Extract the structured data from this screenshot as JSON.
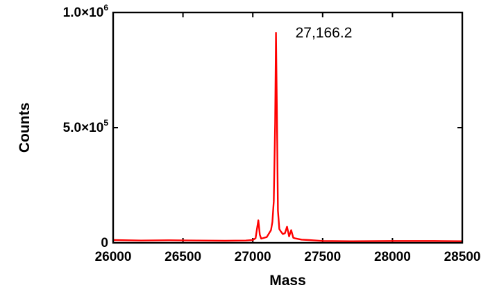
{
  "chart_data": {
    "type": "line",
    "title": "",
    "xlabel": "Mass",
    "ylabel": "Counts",
    "xlim": [
      26000,
      28500
    ],
    "ylim": [
      0,
      1000000
    ],
    "x_ticks": [
      26000,
      26500,
      27000,
      27500,
      28000,
      28500
    ],
    "x_tick_labels": [
      "26000",
      "26500",
      "27000",
      "27500",
      "28000",
      "28500"
    ],
    "y_ticks": [
      {
        "value": 0,
        "mantissa": "0",
        "exponent": ""
      },
      {
        "value": 500000,
        "mantissa": "5.0×10",
        "exponent": "5"
      },
      {
        "value": 1000000,
        "mantissa": "1.0×10",
        "exponent": "6"
      }
    ],
    "grid": false,
    "legend": "none",
    "series": [
      {
        "color": "#ff0000",
        "x": [
          26000,
          26200,
          26400,
          26600,
          26800,
          26950,
          27000,
          27020,
          27030,
          27040,
          27050,
          27060,
          27100,
          27130,
          27140,
          27150,
          27160,
          27166.2,
          27172,
          27180,
          27190,
          27200,
          27215,
          27230,
          27245,
          27260,
          27275,
          27290,
          27300,
          27350,
          27400,
          27500,
          27700,
          28000,
          28300,
          28500
        ],
        "y": [
          12000,
          10000,
          11000,
          10000,
          9000,
          10000,
          12000,
          20000,
          60000,
          98000,
          35000,
          18000,
          25000,
          55000,
          90000,
          180000,
          520000,
          912000,
          600000,
          140000,
          60000,
          50000,
          38000,
          42000,
          70000,
          28000,
          55000,
          22000,
          20000,
          14000,
          12000,
          8000,
          7000,
          8000,
          8000,
          7000
        ]
      }
    ],
    "annotations": [
      {
        "text": "27,166.2",
        "x": 27166.2,
        "y": 912000
      }
    ]
  }
}
